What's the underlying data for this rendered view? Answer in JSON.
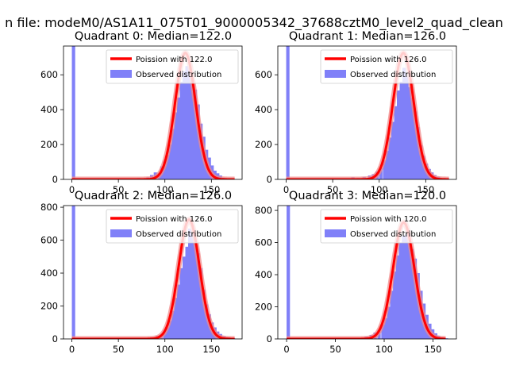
{
  "figure": {
    "suptitle": "n file: modeM0/AS1A11_075T01_9000005342_37688cztM0_level2_quad_clean"
  },
  "colors": {
    "hist": "#8080f8",
    "fit": "#ff0000",
    "fit_glow": "#f28a8a"
  },
  "chart_data": [
    {
      "type": "histogram",
      "title": "Quadrant 0: Median=122.0",
      "xlim": [
        -9,
        183
      ],
      "ylim": [
        0,
        765
      ],
      "xticks": [
        0,
        50,
        100,
        150
      ],
      "yticks": [
        0,
        200,
        400,
        600
      ],
      "legend": [
        "Poission with 122.0",
        "Observed distribution"
      ],
      "legend_position": "upper right",
      "bin_width": 3.3,
      "bins": [
        [
          0,
          765
        ],
        [
          60,
          4
        ],
        [
          70,
          8
        ],
        [
          76,
          5
        ],
        [
          80,
          12
        ],
        [
          84,
          25
        ],
        [
          88,
          40
        ],
        [
          92,
          38
        ],
        [
          95,
          75
        ],
        [
          98,
          102
        ],
        [
          101,
          140
        ],
        [
          104,
          200
        ],
        [
          107,
          290
        ],
        [
          110,
          385
        ],
        [
          113,
          470
        ],
        [
          116,
          560
        ],
        [
          119,
          620
        ],
        [
          122,
          650
        ],
        [
          125,
          640
        ],
        [
          128,
          570
        ],
        [
          131,
          515
        ],
        [
          134,
          430
        ],
        [
          137,
          320
        ],
        [
          140,
          245
        ],
        [
          143,
          170
        ],
        [
          146,
          125
        ],
        [
          149,
          80
        ],
        [
          152,
          50
        ],
        [
          155,
          35
        ],
        [
          158,
          22
        ],
        [
          161,
          10
        ],
        [
          165,
          5
        ],
        [
          170,
          3
        ]
      ],
      "fit": {
        "mean": 122,
        "x_range": [
          0,
          175
        ],
        "peak": 725
      }
    },
    {
      "type": "histogram",
      "title": "Quadrant 1: Median=126.0",
      "xlim": [
        -9,
        183
      ],
      "ylim": [
        0,
        765
      ],
      "xticks": [
        0,
        50,
        100,
        150
      ],
      "yticks": [
        0,
        200,
        400,
        600
      ],
      "legend": [
        "Poission with 126.0",
        "Observed distribution"
      ],
      "legend_position": "upper right",
      "bin_width": 3.3,
      "bins": [
        [
          0,
          765
        ],
        [
          70,
          12
        ],
        [
          76,
          8
        ],
        [
          82,
          15
        ],
        [
          88,
          22
        ],
        [
          92,
          30
        ],
        [
          96,
          45
        ],
        [
          100,
          65
        ],
        [
          104,
          110
        ],
        [
          107,
          165
        ],
        [
          110,
          240
        ],
        [
          113,
          330
        ],
        [
          116,
          420
        ],
        [
          119,
          510
        ],
        [
          122,
          560
        ],
        [
          125,
          640
        ],
        [
          128,
          590
        ],
        [
          131,
          530
        ],
        [
          134,
          470
        ],
        [
          137,
          390
        ],
        [
          140,
          300
        ],
        [
          143,
          195
        ],
        [
          146,
          135
        ],
        [
          149,
          90
        ],
        [
          152,
          60
        ],
        [
          155,
          40
        ],
        [
          158,
          25
        ],
        [
          162,
          15
        ],
        [
          166,
          6
        ],
        [
          172,
          3
        ]
      ],
      "fit": {
        "mean": 126,
        "x_range": [
          0,
          175
        ],
        "peak": 725
      }
    },
    {
      "type": "histogram",
      "title": "Quadrant 2: Median=126.0",
      "xlim": [
        -9,
        183
      ],
      "ylim": [
        0,
        810
      ],
      "xticks": [
        0,
        50,
        100,
        150
      ],
      "yticks": [
        0,
        200,
        400,
        600,
        800
      ],
      "legend": [
        "Poission with 126.0",
        "Observed distribution"
      ],
      "legend_position": "upper right",
      "bin_width": 3.3,
      "bins": [
        [
          0,
          810
        ],
        [
          70,
          5
        ],
        [
          78,
          4
        ],
        [
          84,
          10
        ],
        [
          90,
          18
        ],
        [
          94,
          25
        ],
        [
          98,
          45
        ],
        [
          101,
          70
        ],
        [
          104,
          110
        ],
        [
          107,
          170
        ],
        [
          110,
          250
        ],
        [
          113,
          330
        ],
        [
          116,
          430
        ],
        [
          119,
          500
        ],
        [
          122,
          560
        ],
        [
          125,
          670
        ],
        [
          128,
          640
        ],
        [
          131,
          580
        ],
        [
          134,
          520
        ],
        [
          137,
          430
        ],
        [
          140,
          300
        ],
        [
          143,
          210
        ],
        [
          146,
          150
        ],
        [
          149,
          100
        ],
        [
          152,
          70
        ],
        [
          155,
          45
        ],
        [
          158,
          30
        ],
        [
          162,
          18
        ],
        [
          166,
          10
        ],
        [
          172,
          4
        ]
      ],
      "fit": {
        "mean": 126,
        "x_range": [
          0,
          175
        ],
        "peak": 725
      }
    },
    {
      "type": "histogram",
      "title": "Quadrant 3: Median=120.0",
      "xlim": [
        -9,
        174
      ],
      "ylim": [
        0,
        830
      ],
      "xticks": [
        0,
        50,
        100,
        150
      ],
      "yticks": [
        0,
        200,
        400,
        600,
        800
      ],
      "legend": [
        "Poission with 120.0",
        "Observed distribution"
      ],
      "legend_position": "upper right",
      "bin_width": 3.2,
      "bins": [
        [
          0,
          830
        ],
        [
          72,
          6
        ],
        [
          80,
          15
        ],
        [
          85,
          25
        ],
        [
          89,
          40
        ],
        [
          93,
          55
        ],
        [
          97,
          90
        ],
        [
          100,
          130
        ],
        [
          103,
          200
        ],
        [
          106,
          300
        ],
        [
          109,
          420
        ],
        [
          112,
          520
        ],
        [
          115,
          600
        ],
        [
          118,
          640
        ],
        [
          121,
          650
        ],
        [
          124,
          600
        ],
        [
          127,
          560
        ],
        [
          130,
          500
        ],
        [
          133,
          410
        ],
        [
          136,
          300
        ],
        [
          139,
          220
        ],
        [
          142,
          150
        ],
        [
          145,
          95
        ],
        [
          148,
          60
        ],
        [
          151,
          35
        ],
        [
          154,
          20
        ],
        [
          158,
          10
        ],
        [
          162,
          4
        ]
      ],
      "fit": {
        "mean": 120,
        "x_range": [
          0,
          163
        ],
        "peak": 725
      }
    }
  ]
}
